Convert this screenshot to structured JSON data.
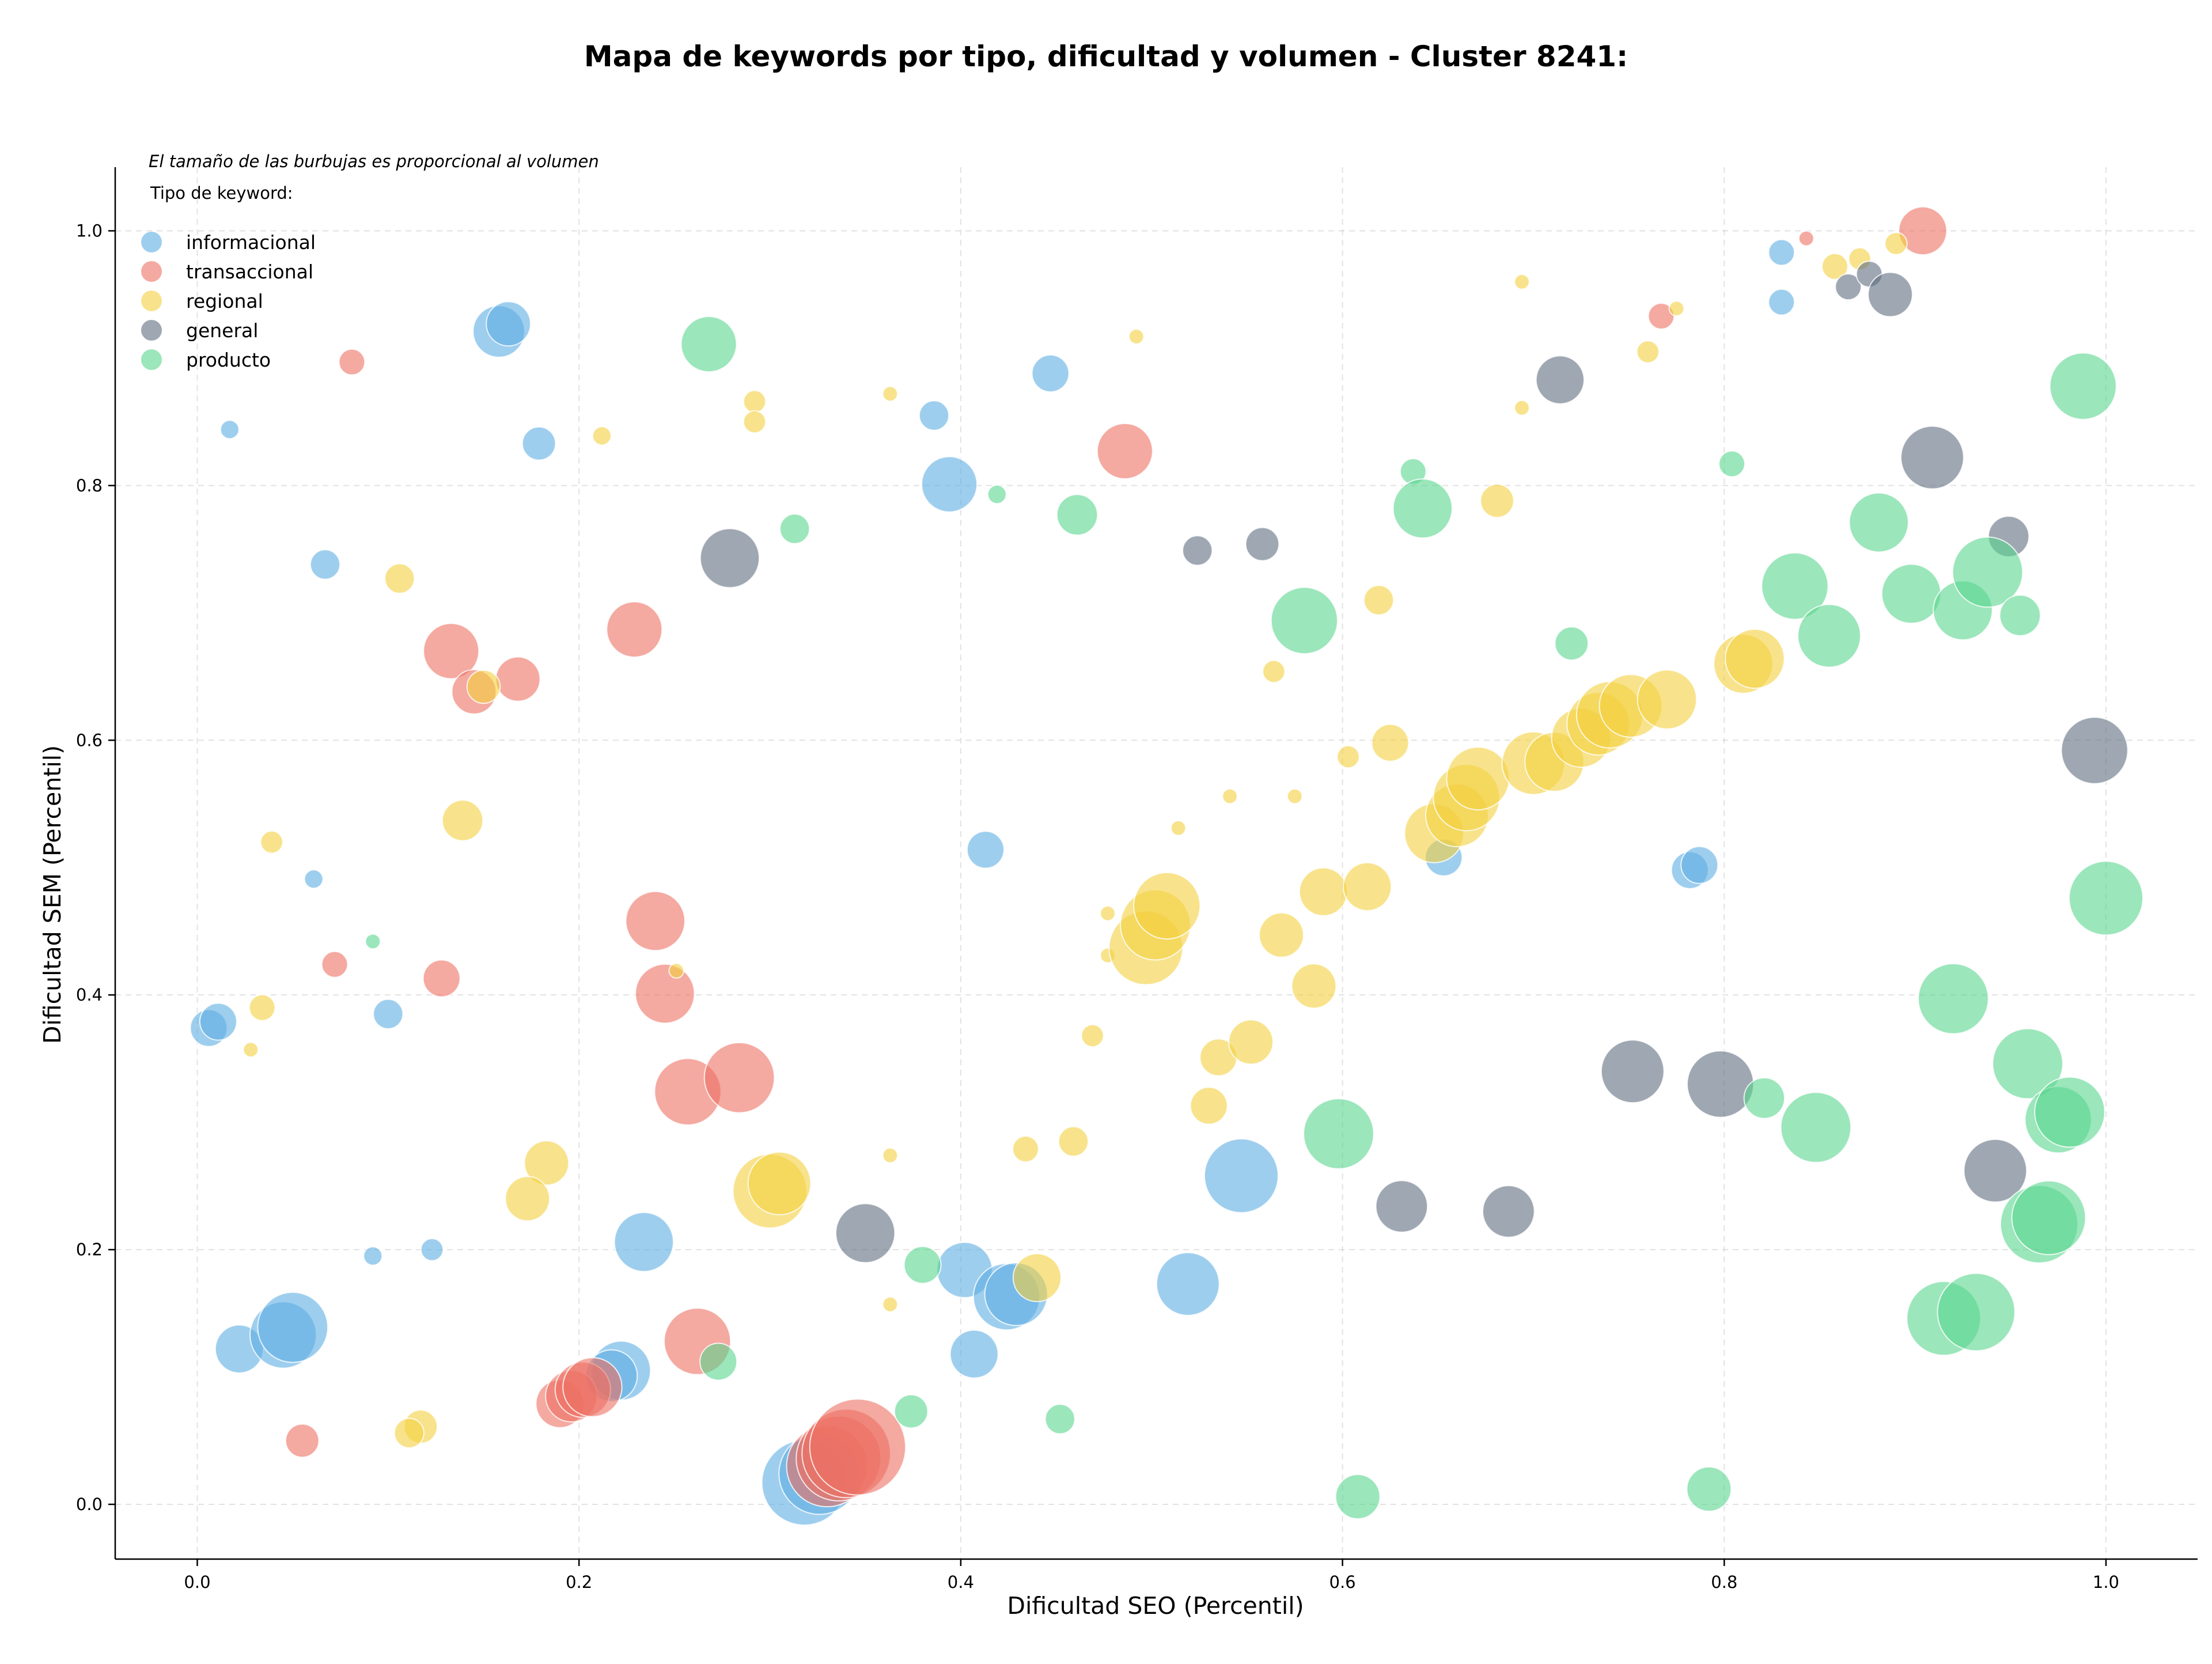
{
  "chart_data": {
    "type": "scatter",
    "title": "Mapa de keywords por tipo, dificultad y volumen - Cluster 8241:",
    "xlabel": "Dificultad SEO (Percentil)",
    "ylabel": "Dificultad SEM (Percentil)",
    "size_note": "El tamaño de las burbujas es proporcional al volumen",
    "legend_title": "Tipo de keyword:",
    "legend_position": "top-left",
    "grid": true,
    "xlim": [
      -0.043,
      1.048
    ],
    "ylim": [
      -0.043,
      1.05
    ],
    "x_ticks": [
      "0.0",
      "0.2",
      "0.4",
      "0.6",
      "0.8",
      "1.0"
    ],
    "y_ticks": [
      "0.0",
      "0.2",
      "0.4",
      "0.6",
      "0.8",
      "1.0"
    ],
    "series": [
      {
        "name": "informacional",
        "color": "#5DADE2",
        "points": [
          [
            0.017,
            0.844,
            0.5
          ],
          [
            0.158,
            0.921,
            1.4
          ],
          [
            0.163,
            0.927,
            1.2
          ],
          [
            0.179,
            0.833,
            0.9
          ],
          [
            0.067,
            0.738,
            0.8
          ],
          [
            0.386,
            0.855,
            0.8
          ],
          [
            0.394,
            0.801,
            1.5
          ],
          [
            0.447,
            0.888,
            1.0
          ],
          [
            0.061,
            0.491,
            0.5
          ],
          [
            0.006,
            0.374,
            1.0
          ],
          [
            0.011,
            0.379,
            1.0
          ],
          [
            0.1,
            0.385,
            0.8
          ],
          [
            0.092,
            0.195,
            0.5
          ],
          [
            0.123,
            0.2,
            0.6
          ],
          [
            0.234,
            0.206,
            1.6
          ],
          [
            0.022,
            0.122,
            1.3
          ],
          [
            0.045,
            0.133,
            1.8
          ],
          [
            0.05,
            0.139,
            1.9
          ],
          [
            0.222,
            0.105,
            1.6
          ],
          [
            0.217,
            0.101,
            1.4
          ],
          [
            0.402,
            0.184,
            1.5
          ],
          [
            0.424,
            0.163,
            1.8
          ],
          [
            0.429,
            0.165,
            1.7
          ],
          [
            0.407,
            0.118,
            1.3
          ],
          [
            0.413,
            0.514,
            1.0
          ],
          [
            0.547,
            0.258,
            2.0
          ],
          [
            0.519,
            0.173,
            1.7
          ],
          [
            0.318,
            0.017,
            2.3
          ],
          [
            0.326,
            0.024,
            2.2
          ],
          [
            0.653,
            0.508,
            1.0
          ],
          [
            0.782,
            0.498,
            1.0
          ],
          [
            0.787,
            0.502,
            1.0
          ],
          [
            0.83,
            0.983,
            0.7
          ],
          [
            0.83,
            0.944,
            0.7
          ]
        ]
      },
      {
        "name": "transaccional",
        "color": "#EC7063",
        "points": [
          [
            0.081,
            0.897,
            0.7
          ],
          [
            0.133,
            0.67,
            1.5
          ],
          [
            0.145,
            0.638,
            1.2
          ],
          [
            0.168,
            0.648,
            1.2
          ],
          [
            0.229,
            0.687,
            1.5
          ],
          [
            0.072,
            0.424,
            0.7
          ],
          [
            0.128,
            0.413,
            1.0
          ],
          [
            0.24,
            0.458,
            1.6
          ],
          [
            0.245,
            0.401,
            1.6
          ],
          [
            0.257,
            0.324,
            1.8
          ],
          [
            0.284,
            0.335,
            1.9
          ],
          [
            0.262,
            0.128,
            1.8
          ],
          [
            0.055,
            0.05,
            0.9
          ],
          [
            0.19,
            0.079,
            1.3
          ],
          [
            0.196,
            0.085,
            1.4
          ],
          [
            0.202,
            0.09,
            1.5
          ],
          [
            0.207,
            0.092,
            1.6
          ],
          [
            0.33,
            0.03,
            2.2
          ],
          [
            0.336,
            0.036,
            2.3
          ],
          [
            0.34,
            0.04,
            2.4
          ],
          [
            0.346,
            0.045,
            2.6
          ],
          [
            0.486,
            0.827,
            1.5
          ],
          [
            0.767,
            0.933,
            0.7
          ],
          [
            0.843,
            0.994,
            0.4
          ],
          [
            0.904,
            1.0,
            1.3
          ]
        ]
      },
      {
        "name": "regional",
        "color": "#F4D03F",
        "points": [
          [
            0.212,
            0.839,
            0.5
          ],
          [
            0.106,
            0.727,
            0.8
          ],
          [
            0.292,
            0.866,
            0.6
          ],
          [
            0.292,
            0.85,
            0.6
          ],
          [
            0.363,
            0.872,
            0.4
          ],
          [
            0.492,
            0.917,
            0.4
          ],
          [
            0.694,
            0.96,
            0.4
          ],
          [
            0.694,
            0.861,
            0.4
          ],
          [
            0.15,
            0.642,
            0.9
          ],
          [
            0.139,
            0.537,
            1.1
          ],
          [
            0.039,
            0.52,
            0.6
          ],
          [
            0.034,
            0.39,
            0.7
          ],
          [
            0.028,
            0.357,
            0.4
          ],
          [
            0.251,
            0.419,
            0.4
          ],
          [
            0.183,
            0.268,
            1.2
          ],
          [
            0.173,
            0.24,
            1.2
          ],
          [
            0.3,
            0.246,
            2.0
          ],
          [
            0.305,
            0.252,
            1.7
          ],
          [
            0.117,
            0.061,
            0.9
          ],
          [
            0.111,
            0.056,
            0.8
          ],
          [
            0.363,
            0.274,
            0.4
          ],
          [
            0.363,
            0.157,
            0.4
          ],
          [
            0.434,
            0.279,
            0.7
          ],
          [
            0.459,
            0.285,
            0.8
          ],
          [
            0.44,
            0.178,
            1.3
          ],
          [
            0.469,
            0.368,
            0.6
          ],
          [
            0.477,
            0.464,
            0.4
          ],
          [
            0.477,
            0.431,
            0.4
          ],
          [
            0.497,
            0.437,
            2.0
          ],
          [
            0.502,
            0.455,
            1.9
          ],
          [
            0.508,
            0.47,
            1.8
          ],
          [
            0.514,
            0.531,
            0.4
          ],
          [
            0.541,
            0.556,
            0.4
          ],
          [
            0.575,
            0.556,
            0.4
          ],
          [
            0.53,
            0.313,
            1.0
          ],
          [
            0.535,
            0.351,
            1.0
          ],
          [
            0.552,
            0.363,
            1.2
          ],
          [
            0.564,
            0.654,
            0.6
          ],
          [
            0.568,
            0.447,
            1.2
          ],
          [
            0.585,
            0.407,
            1.2
          ],
          [
            0.59,
            0.481,
            1.3
          ],
          [
            0.613,
            0.485,
            1.3
          ],
          [
            0.603,
            0.587,
            0.6
          ],
          [
            0.619,
            0.71,
            0.8
          ],
          [
            0.625,
            0.598,
            1.0
          ],
          [
            0.648,
            0.527,
            1.6
          ],
          [
            0.66,
            0.541,
            1.7
          ],
          [
            0.665,
            0.555,
            1.8
          ],
          [
            0.671,
            0.57,
            1.7
          ],
          [
            0.681,
            0.788,
            0.9
          ],
          [
            0.7,
            0.582,
            1.7
          ],
          [
            0.711,
            0.583,
            1.6
          ],
          [
            0.725,
            0.602,
            1.6
          ],
          [
            0.734,
            0.613,
            1.7
          ],
          [
            0.74,
            0.62,
            1.8
          ],
          [
            0.751,
            0.627,
            1.7
          ],
          [
            0.77,
            0.632,
            1.6
          ],
          [
            0.76,
            0.905,
            0.6
          ],
          [
            0.775,
            0.939,
            0.4
          ],
          [
            0.81,
            0.66,
            1.6
          ],
          [
            0.816,
            0.664,
            1.6
          ],
          [
            0.858,
            0.972,
            0.7
          ],
          [
            0.871,
            0.978,
            0.6
          ],
          [
            0.89,
            0.99,
            0.6
          ]
        ]
      },
      {
        "name": "general",
        "color": "#5D6D7E",
        "points": [
          [
            0.279,
            0.743,
            1.6
          ],
          [
            0.35,
            0.213,
            1.6
          ],
          [
            0.524,
            0.749,
            0.8
          ],
          [
            0.558,
            0.754,
            0.9
          ],
          [
            0.631,
            0.234,
            1.4
          ],
          [
            0.687,
            0.23,
            1.4
          ],
          [
            0.714,
            0.883,
            1.3
          ],
          [
            0.752,
            0.34,
            1.7
          ],
          [
            0.798,
            0.33,
            1.8
          ],
          [
            0.865,
            0.956,
            0.7
          ],
          [
            0.876,
            0.966,
            0.7
          ],
          [
            0.887,
            0.95,
            1.2
          ],
          [
            0.909,
            0.822,
            1.7
          ],
          [
            0.942,
            0.262,
            1.7
          ],
          [
            0.949,
            0.76,
            1.1
          ],
          [
            0.994,
            0.592,
            1.8
          ]
        ]
      },
      {
        "name": "producto",
        "color": "#58D68D",
        "points": [
          [
            0.268,
            0.911,
            1.5
          ],
          [
            0.313,
            0.766,
            0.8
          ],
          [
            0.419,
            0.793,
            0.5
          ],
          [
            0.461,
            0.777,
            1.1
          ],
          [
            0.092,
            0.442,
            0.4
          ],
          [
            0.38,
            0.188,
            1.0
          ],
          [
            0.273,
            0.112,
            1.0
          ],
          [
            0.374,
            0.073,
            0.9
          ],
          [
            0.452,
            0.067,
            0.8
          ],
          [
            0.58,
            0.694,
            1.8
          ],
          [
            0.598,
            0.291,
            1.9
          ],
          [
            0.608,
            0.006,
            1.2
          ],
          [
            0.637,
            0.811,
            0.7
          ],
          [
            0.642,
            0.782,
            1.6
          ],
          [
            0.72,
            0.676,
            0.9
          ],
          [
            0.792,
            0.012,
            1.2
          ],
          [
            0.804,
            0.817,
            0.7
          ],
          [
            0.821,
            0.319,
            1.1
          ],
          [
            0.837,
            0.721,
            1.8
          ],
          [
            0.848,
            0.296,
            1.9
          ],
          [
            0.855,
            0.682,
            1.7
          ],
          [
            0.881,
            0.771,
            1.6
          ],
          [
            0.898,
            0.715,
            1.6
          ],
          [
            0.915,
            0.146,
            2.0
          ],
          [
            0.92,
            0.397,
            1.9
          ],
          [
            0.925,
            0.702,
            1.6
          ],
          [
            0.932,
            0.151,
            2.1
          ],
          [
            0.938,
            0.732,
            1.9
          ],
          [
            0.955,
            0.698,
            1.1
          ],
          [
            0.959,
            0.346,
            1.9
          ],
          [
            0.965,
            0.22,
            2.1
          ],
          [
            0.97,
            0.225,
            2.0
          ],
          [
            0.975,
            0.302,
            1.8
          ],
          [
            0.981,
            0.308,
            1.9
          ],
          [
            0.988,
            0.878,
            1.8
          ],
          [
            1.0,
            0.476,
            2.0
          ]
        ]
      }
    ]
  }
}
